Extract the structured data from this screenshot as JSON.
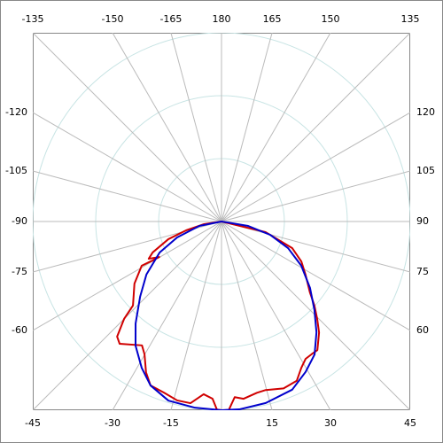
{
  "chart_data": {
    "type": "polar",
    "angle_ticks": [
      -165,
      -150,
      -135,
      -120,
      -105,
      -90,
      -75,
      -60,
      -45,
      -30,
      -15,
      {
        "value": 0,
        "label": null
      },
      15,
      30,
      45,
      60,
      75,
      90,
      105,
      120,
      135,
      150,
      165,
      180
    ],
    "rlim": [
      0,
      30
    ],
    "rticks": [
      10,
      20,
      30
    ],
    "series": [
      {
        "color": "#d00000",
        "theta": [
          180,
          76.5,
          69.4,
          63.4,
          57.7,
          51.3,
          47.9,
          44.5,
          41.3,
          36.7,
          34.2,
          31.5,
          28.6,
          25.3,
          20.4,
          14.7,
          11.7,
          7.1,
          4.3,
          2.2,
          0,
          -1.4,
          -2.9,
          -5.9,
          -9.7,
          -13.9,
          -18.6,
          -23.4,
          -26.6,
          -30.1,
          -32.7,
          -39.8,
          -42.2,
          -45,
          -46.5,
          -54.5,
          -61,
          -60.6,
          -60.3,
          -62.9,
          -65.8,
          -71.6,
          -76,
          -81.5,
          180
        ],
        "values": [
          0,
          7.2,
          12.0,
          14.2,
          15.8,
          18.0,
          19.9,
          21.7,
          23.5,
          25.5,
          25.5,
          25.6,
          26.5,
          28.0,
          28.3,
          27.7,
          27.8,
          28.4,
          28.0,
          30.0,
          30.0,
          29.9,
          28.2,
          27.6,
          29.3,
          29.3,
          28.7,
          28.4,
          26.8,
          24.4,
          23.4,
          25.3,
          24.7,
          21.9,
          19.4,
          17.0,
          14.5,
          12.9,
          11.4,
          13.0,
          12.0,
          8.9,
          5.8,
          2.8,
          0
        ]
      },
      {
        "color": "#0000cc",
        "theta": [
          180,
          80.5,
          74.7,
          68.2,
          61,
          53.1,
          46.4,
          40.6,
          35,
          29.2,
          22.8,
          13.7,
          5.4,
          0,
          -8.1,
          -16.5,
          -23.4,
          -28.6,
          -34.7,
          -40.1,
          -47.3,
          -54.8,
          -63.4,
          -70.2,
          -78.7,
          180
        ],
        "values": [
          0,
          4.3,
          8.0,
          11.4,
          14.5,
          17.6,
          20.4,
          23.2,
          25.8,
          27.4,
          29.0,
          29.7,
          30.0,
          30.0,
          29.9,
          29.7,
          28.4,
          26.5,
          24.0,
          21.2,
          17.6,
          14.6,
          11.0,
          7.5,
          3.6,
          0
        ]
      }
    ]
  }
}
